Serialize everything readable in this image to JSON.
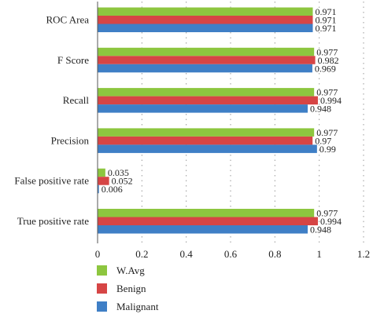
{
  "chart_data": {
    "type": "bar",
    "orientation": "horizontal",
    "title": "",
    "xlabel": "",
    "ylabel": "",
    "xlim": [
      0,
      1.2
    ],
    "x_ticks": [
      "0",
      "0.2",
      "0.4",
      "0.6",
      "0.8",
      "1",
      "1.2"
    ],
    "x_tick_values": [
      0,
      0.2,
      0.4,
      0.6,
      0.8,
      1.0,
      1.2
    ],
    "grid": "vertical dotted",
    "legend_position": "bottom-left",
    "categories": [
      "ROC Area",
      "F Score",
      "Recall",
      "Precision",
      "False positive rate",
      "True positive rate"
    ],
    "series": [
      {
        "name": "W.Avg",
        "color": "#8dc63f",
        "values": [
          0.971,
          0.977,
          0.977,
          0.977,
          0.035,
          0.977
        ],
        "labels": [
          "0.971",
          "0.977",
          "0.977",
          "0.977",
          "0.035",
          "0.977"
        ]
      },
      {
        "name": "Benign",
        "color": "#d64545",
        "values": [
          0.971,
          0.982,
          0.994,
          0.97,
          0.052,
          0.994
        ],
        "labels": [
          "0.971",
          "0.982",
          "0.994",
          "0.97",
          "0.052",
          "0.994"
        ]
      },
      {
        "name": "Malignant",
        "color": "#3f7fc6",
        "values": [
          0.971,
          0.969,
          0.948,
          0.99,
          0.006,
          0.948
        ],
        "labels": [
          "0.971",
          "0.969",
          "0.948",
          "0.99",
          "0.006",
          "0.948"
        ]
      }
    ]
  }
}
